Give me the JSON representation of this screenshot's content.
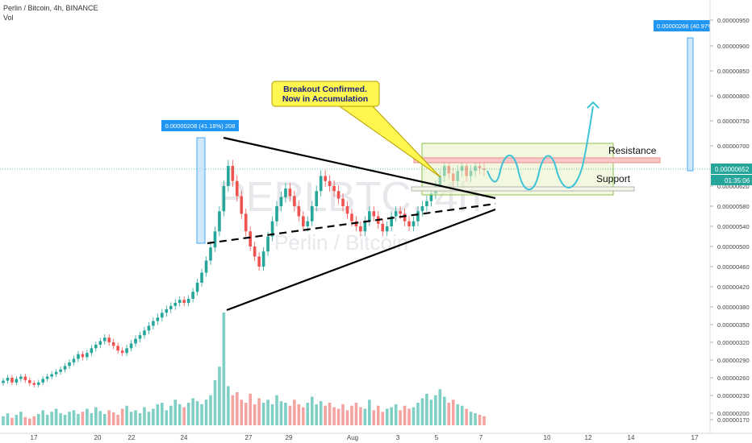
{
  "header": {
    "title": "Perlin / Bitcoin, 4h, BINANCE",
    "volume_label": "Vol"
  },
  "watermark": {
    "symbol": "PERLBTC, 4h",
    "name": "Perlin / Bitcoin"
  },
  "annotations": {
    "callout_line1": "Breakout Confirmed.",
    "callout_line2": "Now in Accumulation",
    "resistance_label": "Resistance",
    "support_label": "Support",
    "measure_left_label": "0.00000208 (41.18%) 208",
    "measure_right_label": "0.00000266 (40.97%",
    "last_price_label": "0.00000652",
    "countdown_label": "01:35:06"
  },
  "colors": {
    "up": "#26a69a",
    "down": "#ef5350",
    "vol_up": "#7fcfc5",
    "vol_down": "#f4a3a1",
    "projection": "#3cc3d6",
    "callout_bg": "#fff64f",
    "callout_text": "#1a237e",
    "measure": "#2196f3",
    "zone_fill": "#e8f3c4",
    "zone_border": "#8bc34a",
    "resistance": "#f28c8c"
  },
  "chart_data": {
    "type": "candlestick",
    "title": "Perlin / Bitcoin, 4h, BINANCE",
    "y_axis_ticks": [
      "0.00000950",
      "0.00000900",
      "0.00000850",
      "0.00000800",
      "0.00000750",
      "0.00000700",
      "0.00000620",
      "0.00000580",
      "0.00000540",
      "0.00000500",
      "0.00000460",
      "0.00000420",
      "0.00000380",
      "0.00000350",
      "0.00000320",
      "0.00000290",
      "0.00000260",
      "0.00000230",
      "0.00000200",
      "0.00000170"
    ],
    "x_axis_ticks": [
      "17",
      "20",
      "22",
      "24",
      "27",
      "29",
      "Aug",
      "3",
      "5",
      "7",
      "10",
      "12",
      "14",
      "17"
    ],
    "ylim": [
      1.7e-06,
      9.7e-06
    ],
    "resistance": 6.68e-06,
    "support": 6.18e-06,
    "last_price": 6.52e-06,
    "closes": [
      2.55e-06,
      2.6e-06,
      2.52e-06,
      2.58e-06,
      2.62e-06,
      2.56e-06,
      2.51e-06,
      2.48e-06,
      2.52e-06,
      2.58e-06,
      2.62e-06,
      2.66e-06,
      2.7e-06,
      2.74e-06,
      2.8e-06,
      2.86e-06,
      2.92e-06,
      3e-06,
      2.95e-06,
      3.02e-06,
      3.1e-06,
      3.16e-06,
      3.22e-06,
      3.28e-06,
      3.2e-06,
      3.14e-06,
      3.06e-06,
      3.02e-06,
      3.1e-06,
      3.18e-06,
      3.26e-06,
      3.32e-06,
      3.4e-06,
      3.48e-06,
      3.56e-06,
      3.62e-06,
      3.7e-06,
      3.76e-06,
      3.82e-06,
      3.88e-06,
      3.94e-06,
      3.88e-06,
      3.96e-06,
      4.1e-06,
      4.28e-06,
      4.48e-06,
      4.72e-06,
      4.98e-06,
      5.3e-06,
      5.7e-06,
      6.2e-06,
      6.6e-06,
      6.3e-06,
      6e-06,
      5.65e-06,
      5.3e-06,
      5e-06,
      4.8e-06,
      4.6e-06,
      4.9e-06,
      5.2e-06,
      5.5e-06,
      5.8e-06,
      5.98e-06,
      6.15e-06,
      6e-06,
      5.8e-06,
      5.6e-06,
      5.4e-06,
      5.5e-06,
      5.8e-06,
      6.1e-06,
      6.4e-06,
      6.3e-06,
      6.2e-06,
      6.1e-06,
      5.95e-06,
      5.8e-06,
      5.65e-06,
      5.5e-06,
      5.4e-06,
      5.3e-06,
      5.5e-06,
      5.7e-06,
      5.6e-06,
      5.45e-06,
      5.3e-06,
      5.4e-06,
      5.6e-06,
      5.7e-06,
      5.65e-06,
      5.5e-06,
      5.4e-06,
      5.5e-06,
      5.7e-06,
      5.8e-06,
      5.9e-06,
      6.05e-06,
      6.2e-06,
      6.4e-06,
      6.6e-06,
      6.45e-06,
      6.3e-06,
      6.5e-06,
      6.6e-06,
      6.4e-06,
      6.5e-06,
      6.6e-06,
      6.55e-06,
      6.52e-06
    ],
    "volumes": [
      12,
      16,
      10,
      14,
      18,
      11,
      9,
      12,
      15,
      20,
      14,
      18,
      22,
      16,
      14,
      18,
      20,
      15,
      18,
      22,
      16,
      24,
      19,
      15,
      20,
      17,
      14,
      22,
      26,
      18,
      20,
      16,
      24,
      18,
      22,
      28,
      30,
      20,
      26,
      34,
      28,
      24,
      30,
      36,
      32,
      28,
      34,
      40,
      60,
      78,
      150,
      52,
      40,
      44,
      34,
      30,
      42,
      28,
      36,
      30,
      34,
      28,
      40,
      32,
      30,
      26,
      34,
      28,
      24,
      30,
      38,
      28,
      32,
      26,
      30,
      24,
      22,
      28,
      20,
      26,
      30,
      24,
      22,
      34,
      20,
      26,
      18,
      22,
      24,
      28,
      20,
      26,
      22,
      24,
      30,
      36,
      42,
      34,
      40,
      48,
      38,
      30,
      34,
      28,
      26,
      22,
      18,
      16,
      14,
      12
    ]
  }
}
